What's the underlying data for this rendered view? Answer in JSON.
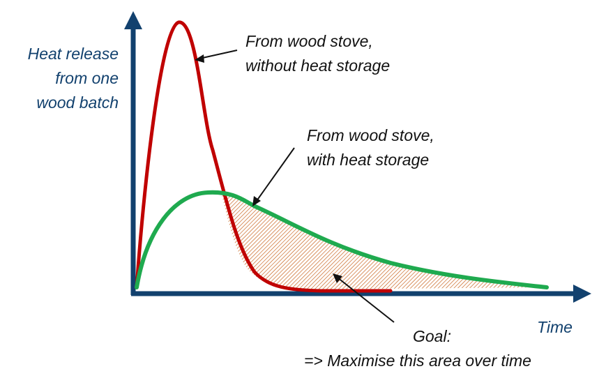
{
  "labels": {
    "y_axis": [
      "Heat release",
      "from one",
      "wood batch"
    ],
    "x_axis": "Time",
    "curve_without_storage": [
      "From wood stove,",
      "without heat storage"
    ],
    "curve_with_storage": [
      "From wood stove,",
      "with heat storage"
    ],
    "goal": "Goal:",
    "goal_detail": "=> Maximise this area over time"
  },
  "colors": {
    "axis": "#12416e",
    "curve_without_storage": "#c00000",
    "curve_with_storage": "#1faa4f",
    "hatch": "#c55a11",
    "text": "#111111"
  }
}
